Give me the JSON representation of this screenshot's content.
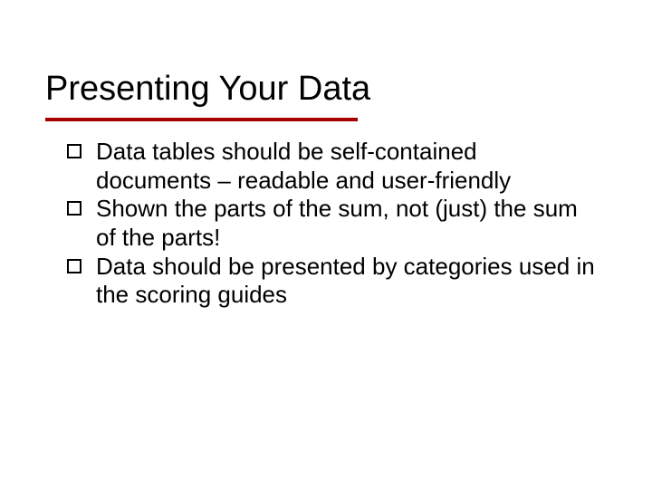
{
  "slide": {
    "title": "Presenting Your Data",
    "title_fontsize": 38,
    "title_color": "#000000",
    "underline_color": "#a80000",
    "underline_height": 4,
    "underline_width": 345,
    "background_color": "#ffffff",
    "body_fontsize": 26,
    "body_color": "#000000",
    "bullet_style": "hollow-square",
    "bullet_border_color": "#000000",
    "bullets": [
      {
        "text": "Data tables should be self-contained documents – readable and user-friendly"
      },
      {
        "text": "Shown the parts of the sum, not (just) the sum of the parts!"
      },
      {
        "text": "Data should be presented by categories used in the scoring guides"
      }
    ]
  }
}
